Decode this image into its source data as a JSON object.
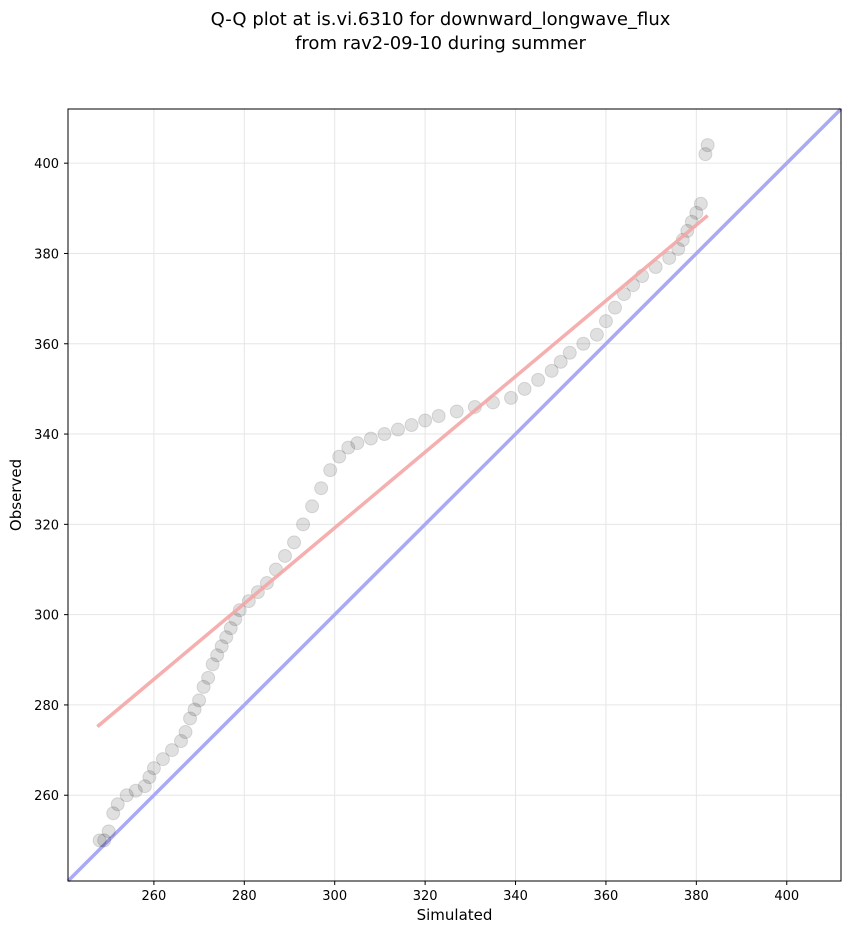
{
  "title_line1": "Q-Q plot at is.vi.6310 for downward_longwave_flux",
  "title_line2": "from rav2-09-10 during summer",
  "chart_data": {
    "type": "scatter",
    "xlabel": "Simulated",
    "ylabel": "Observed",
    "xlim": [
      241,
      412
    ],
    "ylim": [
      241,
      412
    ],
    "xticks": [
      260,
      280,
      300,
      320,
      340,
      360,
      380,
      400
    ],
    "yticks": [
      260,
      280,
      300,
      320,
      340,
      360,
      380,
      400
    ],
    "grid": true,
    "colors": {
      "points": "#000000",
      "fit_line": "#f4a6a6",
      "identity_line": "#a9a9f5",
      "grid": "#e6e6e6"
    },
    "series": [
      {
        "values_xy": [
          [
            248,
            250
          ],
          [
            249,
            250
          ],
          [
            250,
            252
          ],
          [
            251,
            256
          ],
          [
            252,
            258
          ],
          [
            254,
            260
          ],
          [
            256,
            261
          ],
          [
            258,
            262
          ],
          [
            259,
            264
          ],
          [
            260,
            266
          ],
          [
            262,
            268
          ],
          [
            264,
            270
          ],
          [
            266,
            272
          ],
          [
            267,
            274
          ],
          [
            268,
            277
          ],
          [
            269,
            279
          ],
          [
            270,
            281
          ],
          [
            271,
            284
          ],
          [
            272,
            286
          ],
          [
            273,
            289
          ],
          [
            274,
            291
          ],
          [
            275,
            293
          ],
          [
            276,
            295
          ],
          [
            277,
            297
          ],
          [
            278,
            299
          ],
          [
            279,
            301
          ],
          [
            281,
            303
          ],
          [
            283,
            305
          ],
          [
            285,
            307
          ],
          [
            287,
            310
          ],
          [
            289,
            313
          ],
          [
            291,
            316
          ],
          [
            293,
            320
          ],
          [
            295,
            324
          ],
          [
            297,
            328
          ],
          [
            299,
            332
          ],
          [
            301,
            335
          ],
          [
            303,
            337
          ],
          [
            305,
            338
          ],
          [
            308,
            339
          ],
          [
            311,
            340
          ],
          [
            314,
            341
          ],
          [
            317,
            342
          ],
          [
            320,
            343
          ],
          [
            323,
            344
          ],
          [
            327,
            345
          ],
          [
            331,
            346
          ],
          [
            335,
            347
          ],
          [
            339,
            348
          ],
          [
            342,
            350
          ],
          [
            345,
            352
          ],
          [
            348,
            354
          ],
          [
            350,
            356
          ],
          [
            352,
            358
          ],
          [
            355,
            360
          ],
          [
            358,
            362
          ],
          [
            360,
            365
          ],
          [
            362,
            368
          ],
          [
            364,
            371
          ],
          [
            366,
            373
          ],
          [
            368,
            375
          ],
          [
            371,
            377
          ],
          [
            374,
            379
          ],
          [
            376,
            381
          ],
          [
            377,
            383
          ],
          [
            378,
            385
          ],
          [
            379,
            387
          ],
          [
            380,
            389
          ],
          [
            381,
            391
          ],
          [
            382,
            402
          ],
          [
            382.5,
            404
          ]
        ]
      }
    ],
    "fit_line": [
      [
        247.5,
        275.2
      ],
      [
        382.5,
        388.4
      ]
    ],
    "identity_line": [
      [
        241,
        241
      ],
      [
        412,
        412
      ]
    ]
  }
}
